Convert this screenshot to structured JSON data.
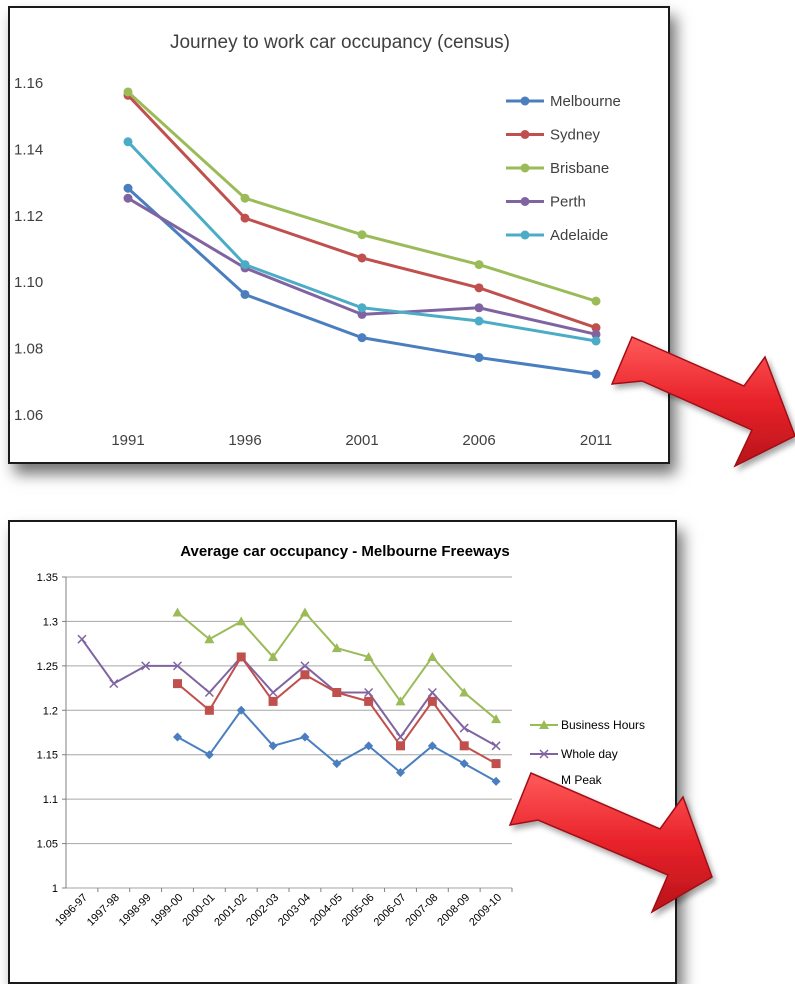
{
  "chart_data": [
    {
      "type": "line",
      "title": "Journey to work car occupancy (census)",
      "categories": [
        "1991",
        "1996",
        "2001",
        "2006",
        "2011"
      ],
      "yticks": [
        "1.06",
        "1.08",
        "1.10",
        "1.12",
        "1.14",
        "1.16"
      ],
      "ylim": [
        1.06,
        1.16
      ],
      "grid": false,
      "legend_position": "top-right",
      "series": [
        {
          "name": "Melbourne",
          "color": "#4a7ebf",
          "values": [
            1.128,
            1.096,
            1.083,
            1.077,
            1.072
          ]
        },
        {
          "name": "Sydney",
          "color": "#c0504d",
          "values": [
            1.156,
            1.119,
            1.107,
            1.098,
            1.086
          ]
        },
        {
          "name": "Brisbane",
          "color": "#9bbb59",
          "values": [
            1.157,
            1.125,
            1.114,
            1.105,
            1.094
          ]
        },
        {
          "name": "Perth",
          "color": "#8064a2",
          "values": [
            1.125,
            1.104,
            1.09,
            1.092,
            1.084
          ]
        },
        {
          "name": "Adelaide",
          "color": "#4bacc6",
          "values": [
            1.142,
            1.105,
            1.092,
            1.088,
            1.082
          ]
        }
      ]
    },
    {
      "type": "line",
      "title": "Average car occupancy - Melbourne Freeways",
      "categories": [
        "1996-97",
        "1997-98",
        "1998-99",
        "1999-00",
        "2000-01",
        "2001-02",
        "2002-03",
        "2003-04",
        "2004-05",
        "2005-06",
        "2006-07",
        "2007-08",
        "2008-09",
        "2009-10"
      ],
      "yticks": [
        "1",
        "1.05",
        "1.1",
        "1.15",
        "1.2",
        "1.25",
        "1.3",
        "1.35"
      ],
      "ylim": [
        1.0,
        1.35
      ],
      "grid": true,
      "legend_position": "right",
      "series": [
        {
          "name": "Business Hours",
          "color": "#9bbb59",
          "marker": "triangle",
          "values": [
            null,
            null,
            null,
            1.31,
            1.28,
            1.3,
            1.26,
            1.31,
            1.27,
            1.26,
            1.21,
            1.26,
            1.22,
            1.19
          ]
        },
        {
          "name": "Whole day",
          "color": "#8064a2",
          "marker": "x",
          "values": [
            1.28,
            1.23,
            1.25,
            1.25,
            1.22,
            1.26,
            1.22,
            1.25,
            1.22,
            1.22,
            1.17,
            1.22,
            1.18,
            1.16
          ]
        },
        {
          "name": "",
          "color": "#c0504d",
          "marker": "square",
          "values": [
            null,
            null,
            null,
            1.23,
            1.2,
            1.26,
            1.21,
            1.24,
            1.22,
            1.21,
            1.16,
            1.21,
            1.16,
            1.14
          ]
        },
        {
          "name": "",
          "color": "#4a7ebf",
          "marker": "diamond",
          "values": [
            null,
            null,
            null,
            1.17,
            1.15,
            1.2,
            1.16,
            1.17,
            1.14,
            1.16,
            1.13,
            1.16,
            1.14,
            1.12
          ]
        }
      ],
      "legend_partial_text": "M Peak"
    }
  ],
  "decor": {
    "arrow_color": "#e8222a",
    "arrow_count": 2
  }
}
